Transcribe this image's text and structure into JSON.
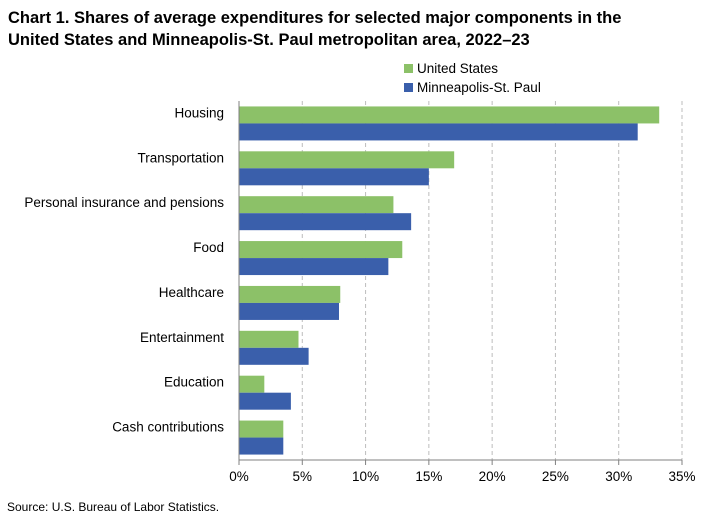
{
  "title_line1": "Chart 1. Shares of average expenditures for selected major components in the",
  "title_line2": "United States and Minneapolis-St. Paul metropolitan area, 2022–23",
  "source": "Source: U.S. Bureau of Labor Statistics.",
  "colors": {
    "us": "#8cc168",
    "msp": "#3a5fab",
    "grid": "#bdbdbd",
    "axis": "#808080"
  },
  "chart_data": {
    "type": "bar",
    "orientation": "horizontal",
    "title": "Chart 1. Shares of average expenditures for selected major components in the United States and Minneapolis-St. Paul metropolitan area, 2022–23",
    "categories": [
      "Housing",
      "Transportation",
      "Personal insurance and pensions",
      "Food",
      "Healthcare",
      "Entertainment",
      "Education",
      "Cash contributions"
    ],
    "series": [
      {
        "name": "United States",
        "values": [
          33.2,
          17.0,
          12.2,
          12.9,
          8.0,
          4.7,
          2.0,
          3.5
        ]
      },
      {
        "name": "Minneapolis-St. Paul",
        "values": [
          31.5,
          15.0,
          13.6,
          11.8,
          7.9,
          5.5,
          4.1,
          3.5
        ]
      }
    ],
    "xlim": [
      0,
      35
    ],
    "xticks": [
      0,
      5,
      10,
      15,
      20,
      25,
      30,
      35
    ],
    "xtick_labels": [
      "0%",
      "5%",
      "10%",
      "15%",
      "20%",
      "25%",
      "30%",
      "35%"
    ],
    "grid": "vertical dashed",
    "legend_position": "top-right"
  }
}
